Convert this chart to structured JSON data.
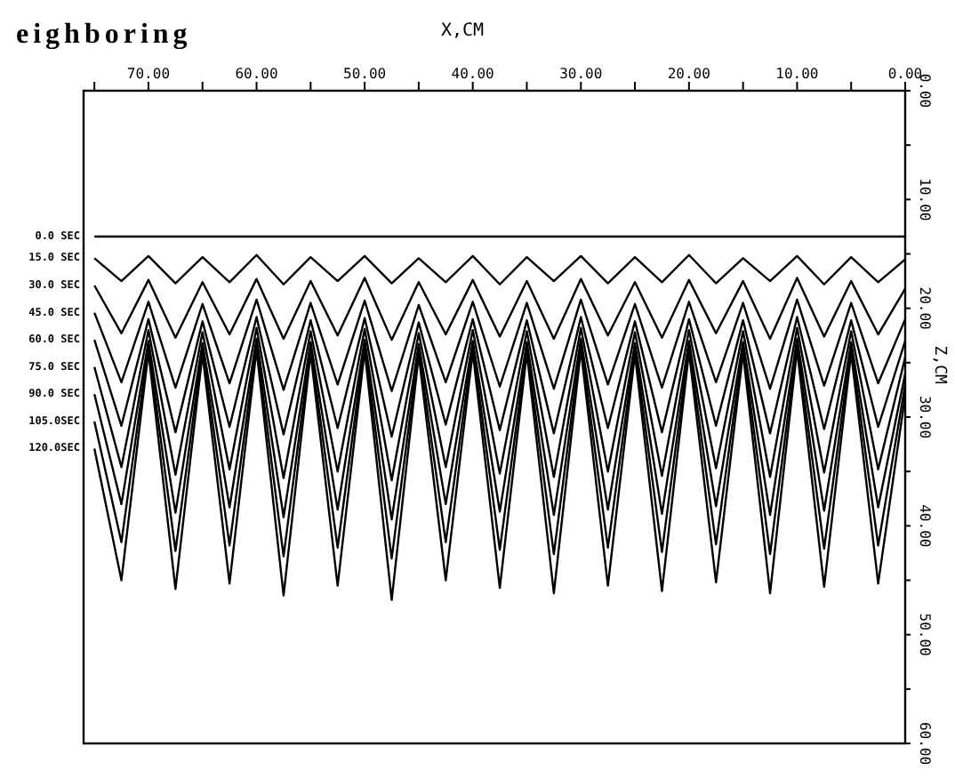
{
  "chart_data": {
    "type": "line",
    "title": "eighboring",
    "xlabel": "X,CM",
    "ylabel": "Z,CM",
    "xlim": [
      76,
      0
    ],
    "ylim": [
      60,
      0
    ],
    "xticks": [
      {
        "value": 0,
        "label": "0.00"
      },
      {
        "value": 5,
        "label": null
      },
      {
        "value": 10,
        "label": "10.00"
      },
      {
        "value": 15,
        "label": null
      },
      {
        "value": 20,
        "label": "20.00"
      },
      {
        "value": 25,
        "label": null
      },
      {
        "value": 30,
        "label": "30.00"
      },
      {
        "value": 35,
        "label": null
      },
      {
        "value": 40,
        "label": "40.00"
      },
      {
        "value": 45,
        "label": null
      },
      {
        "value": 50,
        "label": "50.00"
      },
      {
        "value": 55,
        "label": null
      },
      {
        "value": 60,
        "label": "60.00"
      },
      {
        "value": 65,
        "label": null
      },
      {
        "value": 70,
        "label": "70.00"
      },
      {
        "value": 75,
        "label": null
      }
    ],
    "yticks": [
      {
        "value": 0,
        "label": "0.00"
      },
      {
        "value": 5,
        "label": null
      },
      {
        "value": 10,
        "label": "10.00"
      },
      {
        "value": 15,
        "label": null
      },
      {
        "value": 20,
        "label": "20.00"
      },
      {
        "value": 25,
        "label": null
      },
      {
        "value": 30,
        "label": "30.00"
      },
      {
        "value": 35,
        "label": null
      },
      {
        "value": 40,
        "label": "40.00"
      },
      {
        "value": 45,
        "label": null
      },
      {
        "value": 50,
        "label": "50.00"
      },
      {
        "value": 55,
        "label": null
      },
      {
        "value": 60,
        "label": "60.00"
      }
    ],
    "x": [
      75,
      72.5,
      70,
      67.5,
      65,
      62.5,
      60,
      57.5,
      55,
      52.5,
      50,
      47.5,
      45,
      42.5,
      40,
      37.5,
      35,
      32.5,
      30,
      27.5,
      25,
      22.5,
      20,
      17.5,
      15,
      12.5,
      10,
      7.5,
      5,
      2.5,
      0
    ],
    "series": [
      {
        "name": "0.0 SEC",
        "color": "#000000",
        "values": [
          13.4,
          13.4,
          13.4,
          13.4,
          13.4,
          13.4,
          13.4,
          13.4,
          13.4,
          13.4,
          13.4,
          13.4,
          13.4,
          13.4,
          13.4,
          13.4,
          13.4,
          13.4,
          13.4,
          13.4,
          13.4,
          13.4,
          13.4,
          13.4,
          13.4,
          13.4,
          13.4,
          13.4,
          13.4,
          13.4,
          13.4
        ]
      },
      {
        "name": "15.0 SEC",
        "color": "#000000",
        "values": [
          15.4,
          17.5,
          15.2,
          17.7,
          15.3,
          17.6,
          15.1,
          17.8,
          15.3,
          17.5,
          15.2,
          17.7,
          15.4,
          17.6,
          15.2,
          17.8,
          15.3,
          17.5,
          15.2,
          17.7,
          15.3,
          17.6,
          15.1,
          17.7,
          15.4,
          17.5,
          15.2,
          17.8,
          15.3,
          17.6,
          15.5
        ]
      },
      {
        "name": "30.0 SEC",
        "color": "#000000",
        "values": [
          17.9,
          22.3,
          17.4,
          22.7,
          17.6,
          22.4,
          17.3,
          22.8,
          17.5,
          22.5,
          17.2,
          22.9,
          17.6,
          22.4,
          17.4,
          22.6,
          17.5,
          22.8,
          17.3,
          22.5,
          17.6,
          22.7,
          17.4,
          22.3,
          17.5,
          22.8,
          17.2,
          22.6,
          17.5,
          22.4,
          18.2
        ]
      },
      {
        "name": "45.0 SEC",
        "color": "#000000",
        "values": [
          20.4,
          26.8,
          19.4,
          27.3,
          19.6,
          26.9,
          19.2,
          27.5,
          19.5,
          27.0,
          19.3,
          27.6,
          19.7,
          26.8,
          19.4,
          27.2,
          19.5,
          27.4,
          19.2,
          27.0,
          19.6,
          27.3,
          19.4,
          26.8,
          19.5,
          27.4,
          19.2,
          27.1,
          19.5,
          26.9,
          21.0
        ]
      },
      {
        "name": "60.0 SEC",
        "color": "#000000",
        "values": [
          22.9,
          30.8,
          21.0,
          31.4,
          21.2,
          30.9,
          20.8,
          31.6,
          21.1,
          31.0,
          20.9,
          31.8,
          21.3,
          30.7,
          21.0,
          31.2,
          21.1,
          31.5,
          20.8,
          31.0,
          21.2,
          31.4,
          21.0,
          30.8,
          21.1,
          31.5,
          20.8,
          31.1,
          21.1,
          30.9,
          23.0
        ]
      },
      {
        "name": "75.0 SEC",
        "color": "#000000",
        "values": [
          25.4,
          34.6,
          22.0,
          35.3,
          22.2,
          34.8,
          21.8,
          35.6,
          22.1,
          35.0,
          21.9,
          35.8,
          22.3,
          34.6,
          22.0,
          35.2,
          22.1,
          35.5,
          21.8,
          35.0,
          22.2,
          35.4,
          22.0,
          34.7,
          22.1,
          35.5,
          21.8,
          35.1,
          22.1,
          34.8,
          24.5
        ]
      },
      {
        "name": "90.0 SEC",
        "color": "#000000",
        "values": [
          27.9,
          38.0,
          23.0,
          38.8,
          23.2,
          38.3,
          22.8,
          39.2,
          23.1,
          38.5,
          22.9,
          39.4,
          23.3,
          38.0,
          23.0,
          38.7,
          23.1,
          39.0,
          22.8,
          38.5,
          23.2,
          38.9,
          23.0,
          38.2,
          23.1,
          39.0,
          22.8,
          38.6,
          23.1,
          38.3,
          26.0
        ]
      },
      {
        "name": "105.0SEC",
        "color": "#000000",
        "values": [
          30.4,
          41.5,
          23.5,
          42.3,
          23.7,
          41.8,
          23.3,
          42.8,
          23.6,
          42.0,
          23.4,
          43.0,
          23.8,
          41.5,
          23.5,
          42.2,
          23.6,
          42.6,
          23.3,
          42.0,
          23.7,
          42.4,
          23.5,
          41.7,
          23.6,
          42.6,
          23.3,
          42.1,
          23.6,
          41.8,
          27.0
        ]
      },
      {
        "name": "120.0SEC",
        "color": "#000000",
        "values": [
          32.9,
          45.0,
          24.0,
          45.8,
          24.2,
          45.3,
          23.8,
          46.4,
          24.1,
          45.5,
          23.9,
          46.8,
          24.3,
          45.0,
          24.0,
          45.7,
          24.1,
          46.2,
          23.8,
          45.5,
          24.2,
          46.0,
          24.0,
          45.2,
          24.1,
          46.2,
          23.8,
          45.6,
          24.1,
          45.3,
          28.0
        ]
      }
    ]
  }
}
